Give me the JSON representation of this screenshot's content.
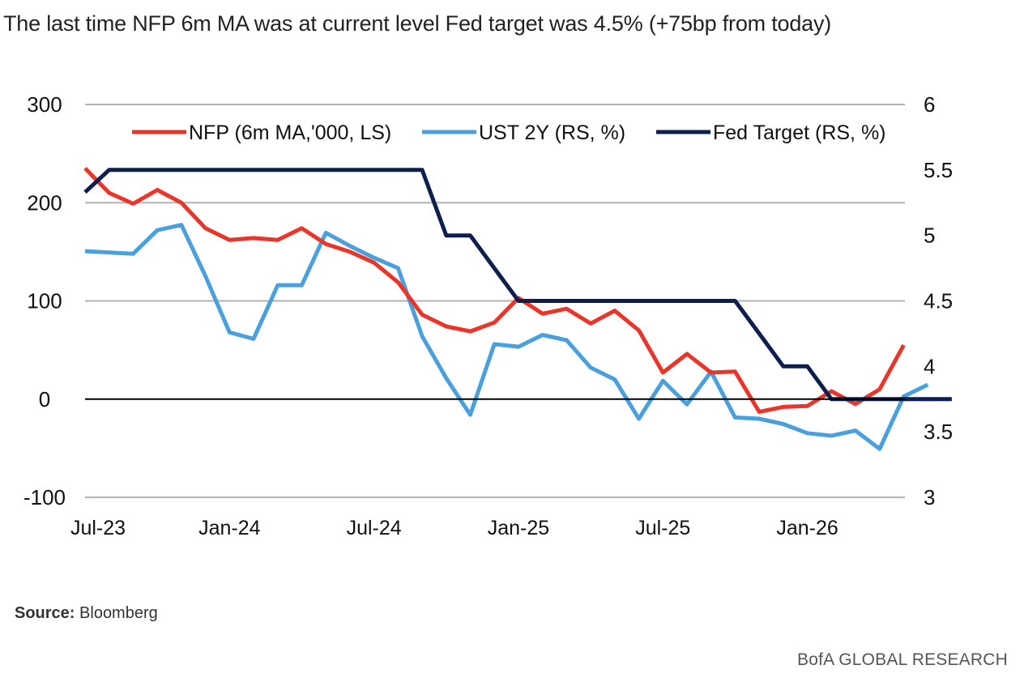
{
  "title": "The last time NFP 6m MA was at current level Fed target was 4.5% (+75bp from today)",
  "source_label": "Source:",
  "source_value": "Bloomberg",
  "brand": "BofA GLOBAL RESEARCH",
  "colors": {
    "nfp": "#e8362a",
    "ust2y": "#4a9fdd",
    "fed": "#0d1f4f",
    "grid": "#b3b3b3",
    "zero": "#000000"
  },
  "chart_data": {
    "type": "line",
    "x_start": "Jul-23",
    "x_tick_labels": [
      "Jul-23",
      "Jan-24",
      "Jul-24",
      "Jan-25",
      "Jul-25",
      "Jan-26"
    ],
    "y_left": {
      "ticks": [
        300,
        200,
        100,
        0,
        -100
      ],
      "tick_labels": [
        "300",
        "200",
        "100",
        "0",
        "-100"
      ],
      "lim": [
        -100,
        300
      ]
    },
    "y_right": {
      "ticks": [
        6,
        5.5,
        5,
        4.5,
        4,
        3.5,
        3
      ],
      "tick_labels": [
        "6",
        "5.5",
        "5",
        "4.5",
        "4",
        "3.5",
        "3"
      ],
      "lim": [
        3,
        6
      ]
    },
    "grid": "horizontal",
    "legend_position": "top",
    "series": [
      {
        "name": "NFP (6m MA,'000, LS)",
        "axis": "left",
        "values": [
          235,
          210,
          199,
          213,
          200,
          174,
          162,
          164,
          162,
          174,
          158,
          150,
          139,
          119,
          86,
          74,
          69,
          78,
          103,
          87,
          92,
          77,
          90,
          70,
          27,
          46,
          27,
          28,
          -13,
          -8,
          -7,
          8,
          -5,
          10,
          55
        ]
      },
      {
        "name": "UST 2Y (RS, %)",
        "axis": "right",
        "values": [
          4.88,
          4.87,
          4.86,
          5.04,
          5.08,
          4.69,
          4.26,
          4.21,
          4.62,
          4.62,
          5.02,
          4.92,
          4.83,
          4.75,
          4.23,
          3.91,
          3.63,
          4.17,
          4.15,
          4.24,
          4.2,
          3.99,
          3.9,
          3.6,
          3.89,
          3.71,
          3.96,
          3.61,
          3.6,
          3.56,
          3.49,
          3.47,
          3.51,
          3.37,
          3.77,
          3.86
        ]
      },
      {
        "name": "Fed Target (RS, %)",
        "axis": "right",
        "values": [
          5.33,
          5.5,
          5.5,
          5.5,
          5.5,
          5.5,
          5.5,
          5.5,
          5.5,
          5.5,
          5.5,
          5.5,
          5.5,
          5.5,
          5.5,
          5.0,
          5.0,
          4.75,
          4.5,
          4.5,
          4.5,
          4.5,
          4.5,
          4.5,
          4.5,
          4.5,
          4.5,
          4.5,
          4.25,
          4.0,
          4.0,
          3.75,
          3.75,
          3.75,
          3.75,
          3.75,
          3.75
        ]
      }
    ]
  }
}
